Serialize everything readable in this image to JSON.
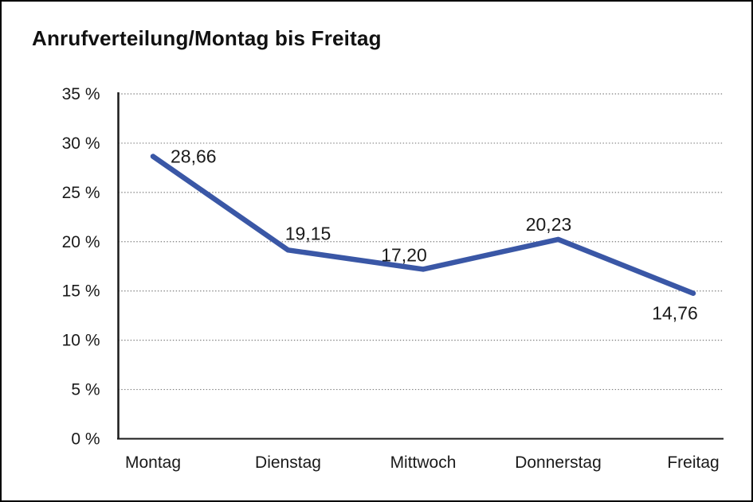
{
  "window": {
    "background_color": "#ffffff",
    "frame_color": "#000000"
  },
  "chart_data": {
    "type": "line",
    "title": "Anrufverteilung/Montag bis Freitag",
    "categories": [
      "Montag",
      "Dienstag",
      "Mittwoch",
      "Donnerstag",
      "Freitag"
    ],
    "values": [
      28.66,
      19.15,
      17.2,
      20.23,
      14.76
    ],
    "point_labels": [
      "28,66",
      "19,15",
      "17,20",
      "20,23",
      "14,76"
    ],
    "point_label_positions": [
      "right",
      "above-right",
      "above-left",
      "above",
      "below-left"
    ],
    "y_ticks": [
      "0 %",
      "5 %",
      "10 %",
      "15 %",
      "20 %",
      "25 %",
      "30 %",
      "35 %"
    ],
    "ylim": [
      0,
      35
    ],
    "y_tick_step": 5,
    "xlabel": "",
    "ylabel": "",
    "legend": "none",
    "grid": "dotted-horizontal",
    "grid_color": "#7d7d7d",
    "axis_color": "#1a1a1a",
    "line_color": "#3a57a6",
    "line_width": 6.5,
    "label_color": "#1a1a1a"
  }
}
